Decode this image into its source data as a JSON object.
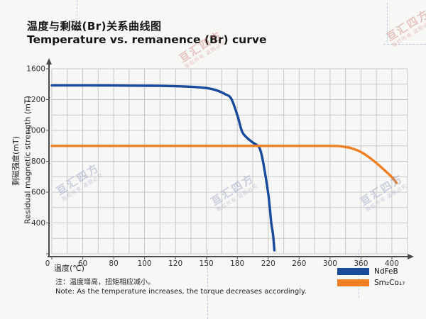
{
  "chart_data": {
    "type": "line",
    "title_zh": "温度与剩磁(Br)关系曲线图",
    "title_en": "Temperature vs. remanence (Br) curve",
    "x_axis_label": "温度(℃)",
    "y_axis_label_zh": "剩磁强度(mT)",
    "y_axis_label_en": "Residual magnetic strength (mT)",
    "categories": [
      "0",
      "60",
      "80",
      "100",
      "120",
      "150",
      "180",
      "220",
      "260",
      "300",
      "360",
      "400"
    ],
    "y_tick_labels": [
      "1600",
      "1200",
      "1000",
      "800",
      "600",
      "400",
      "0"
    ],
    "axis_note": "both axes are categorical in style: x labels 0-400 and y labels 0-1600 are evenly spaced despite non-uniform numeric steps; grid has a minor line between each labeled line",
    "grid": true,
    "legend_position": "bottom-right",
    "series": [
      {
        "name": "NdFeB",
        "color": "#1a4a9b",
        "summary": "flat at ~1385 mT from 0-120°C, eases to ~1350 by 150°C, then falls steeply: ~1000 mT near 180°C, crosses 900 mT just past 200°C, plunges to ~0 mT by ~220°C",
        "points": [
          [
            0,
            1385
          ],
          [
            0.5,
            1385
          ],
          [
            1,
            1385
          ],
          [
            1.5,
            1384
          ],
          [
            2,
            1383
          ],
          [
            2.5,
            1381
          ],
          [
            3,
            1380
          ],
          [
            3.5,
            1378
          ],
          [
            4,
            1374
          ],
          [
            4.5,
            1366
          ],
          [
            4.8,
            1358
          ],
          [
            5,
            1350
          ],
          [
            5.2,
            1335
          ],
          [
            5.4,
            1310
          ],
          [
            5.6,
            1272
          ],
          [
            5.8,
            1215
          ],
          [
            6.0,
            1100
          ],
          [
            6.15,
            995
          ],
          [
            6.3,
            955
          ],
          [
            6.5,
            922
          ],
          [
            6.7,
            893
          ],
          [
            6.8,
            830
          ],
          [
            6.9,
            720
          ],
          [
            7.0,
            590
          ],
          [
            7.05,
            500
          ],
          [
            7.1,
            395
          ],
          [
            7.15,
            265
          ],
          [
            7.18,
            145
          ],
          [
            7.2,
            45
          ]
        ]
      },
      {
        "name": "Sm₂Co₁₇",
        "color": "#f07f22",
        "summary": "flat at ~900 mT from 0°C to ~310°C, then declines gently to ~660 mT at 400°C",
        "points": [
          [
            0,
            900
          ],
          [
            1,
            900
          ],
          [
            2,
            900
          ],
          [
            3,
            900
          ],
          [
            4,
            900
          ],
          [
            5,
            900
          ],
          [
            6,
            900
          ],
          [
            7,
            900
          ],
          [
            8,
            900
          ],
          [
            9,
            900
          ],
          [
            9.3,
            898
          ],
          [
            9.5,
            893
          ],
          [
            9.7,
            884
          ],
          [
            9.9,
            870
          ],
          [
            10.1,
            848
          ],
          [
            10.3,
            820
          ],
          [
            10.5,
            788
          ],
          [
            10.7,
            753
          ],
          [
            10.9,
            717
          ],
          [
            11.0,
            697
          ],
          [
            11.1,
            673
          ],
          [
            11.15,
            660
          ]
        ]
      }
    ]
  },
  "footnote": {
    "zh": "注：温度增高，扭矩相应减小。",
    "en": "Note: As the temperature increases, the torque decreases accordingly."
  },
  "watermark": {
    "brand": "亘汇四方",
    "slogan": "版权所有 盗图必究",
    "colors": {
      "pink": "#c86e69",
      "lavender": "#8c96be"
    }
  }
}
